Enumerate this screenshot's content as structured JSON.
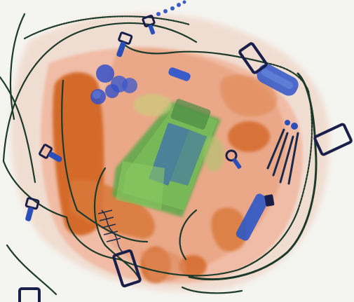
{
  "scene": {
    "background_color": "#f4f4f0",
    "palette": {
      "organic": "#d46a2a",
      "organic_light": "#eaa07a",
      "inorganic": "#5aa84a",
      "inorganic_light": "#a8d48a",
      "metal": "#2a4fb8",
      "metal_dark": "#1a1f4a",
      "strap": "#1c3a2a"
    }
  }
}
